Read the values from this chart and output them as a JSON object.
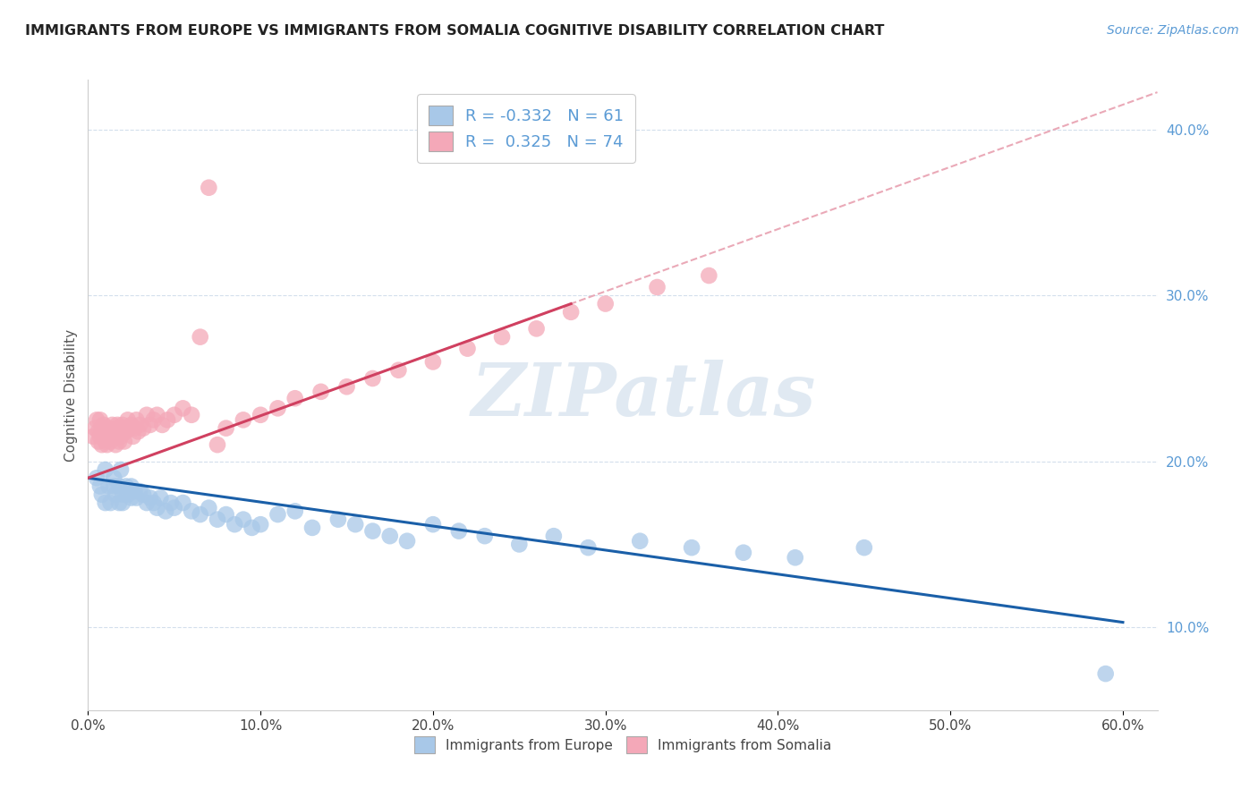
{
  "title": "IMMIGRANTS FROM EUROPE VS IMMIGRANTS FROM SOMALIA COGNITIVE DISABILITY CORRELATION CHART",
  "source_text": "Source: ZipAtlas.com",
  "ylabel": "Cognitive Disability",
  "legend_label1": "Immigrants from Europe",
  "legend_label2": "Immigrants from Somalia",
  "R1": -0.332,
  "N1": 61,
  "R2": 0.325,
  "N2": 74,
  "color_europe": "#a8c8e8",
  "color_somalia": "#f4a8b8",
  "line_color_europe": "#1a5fa8",
  "line_color_somalia": "#d04060",
  "line_color_dashed": "#e8a0b0",
  "xlim": [
    0.0,
    0.62
  ],
  "ylim": [
    0.05,
    0.43
  ],
  "x_ticks": [
    0.0,
    0.1,
    0.2,
    0.3,
    0.4,
    0.5,
    0.6
  ],
  "y_ticks_right": [
    0.1,
    0.2,
    0.3,
    0.4
  ],
  "background_color": "#ffffff",
  "grid_color": "#c8d8e8",
  "watermark": "ZIPatlas",
  "europe_x": [
    0.005,
    0.007,
    0.008,
    0.01,
    0.01,
    0.012,
    0.013,
    0.015,
    0.015,
    0.016,
    0.018,
    0.018,
    0.019,
    0.02,
    0.02,
    0.022,
    0.023,
    0.025,
    0.025,
    0.027,
    0.028,
    0.03,
    0.032,
    0.034,
    0.036,
    0.038,
    0.04,
    0.042,
    0.045,
    0.048,
    0.05,
    0.055,
    0.06,
    0.065,
    0.07,
    0.075,
    0.08,
    0.085,
    0.09,
    0.095,
    0.1,
    0.11,
    0.12,
    0.13,
    0.145,
    0.155,
    0.165,
    0.175,
    0.185,
    0.2,
    0.215,
    0.23,
    0.25,
    0.27,
    0.29,
    0.32,
    0.35,
    0.38,
    0.41,
    0.45,
    0.59
  ],
  "europe_y": [
    0.19,
    0.185,
    0.18,
    0.195,
    0.175,
    0.185,
    0.175,
    0.19,
    0.185,
    0.18,
    0.185,
    0.175,
    0.195,
    0.18,
    0.175,
    0.185,
    0.18,
    0.185,
    0.178,
    0.182,
    0.178,
    0.182,
    0.18,
    0.175,
    0.178,
    0.175,
    0.172,
    0.178,
    0.17,
    0.175,
    0.172,
    0.175,
    0.17,
    0.168,
    0.172,
    0.165,
    0.168,
    0.162,
    0.165,
    0.16,
    0.162,
    0.168,
    0.17,
    0.16,
    0.165,
    0.162,
    0.158,
    0.155,
    0.152,
    0.162,
    0.158,
    0.155,
    0.15,
    0.155,
    0.148,
    0.152,
    0.148,
    0.145,
    0.142,
    0.148,
    0.072
  ],
  "somalia_x": [
    0.003,
    0.004,
    0.005,
    0.006,
    0.006,
    0.007,
    0.007,
    0.008,
    0.008,
    0.009,
    0.009,
    0.01,
    0.01,
    0.01,
    0.011,
    0.011,
    0.012,
    0.012,
    0.013,
    0.013,
    0.014,
    0.014,
    0.015,
    0.015,
    0.016,
    0.016,
    0.017,
    0.017,
    0.018,
    0.018,
    0.019,
    0.019,
    0.02,
    0.02,
    0.021,
    0.022,
    0.023,
    0.024,
    0.025,
    0.026,
    0.027,
    0.028,
    0.029,
    0.03,
    0.032,
    0.034,
    0.036,
    0.038,
    0.04,
    0.043,
    0.046,
    0.05,
    0.055,
    0.06,
    0.065,
    0.07,
    0.075,
    0.08,
    0.09,
    0.1,
    0.11,
    0.12,
    0.135,
    0.15,
    0.165,
    0.18,
    0.2,
    0.22,
    0.24,
    0.26,
    0.28,
    0.3,
    0.33,
    0.36
  ],
  "somalia_y": [
    0.215,
    0.22,
    0.225,
    0.218,
    0.212,
    0.225,
    0.215,
    0.22,
    0.21,
    0.218,
    0.222,
    0.215,
    0.212,
    0.22,
    0.218,
    0.21,
    0.215,
    0.22,
    0.212,
    0.218,
    0.215,
    0.222,
    0.218,
    0.215,
    0.22,
    0.21,
    0.215,
    0.222,
    0.218,
    0.212,
    0.22,
    0.215,
    0.218,
    0.222,
    0.212,
    0.218,
    0.225,
    0.22,
    0.222,
    0.215,
    0.22,
    0.225,
    0.218,
    0.222,
    0.22,
    0.228,
    0.222,
    0.225,
    0.228,
    0.222,
    0.225,
    0.228,
    0.232,
    0.228,
    0.275,
    0.365,
    0.21,
    0.22,
    0.225,
    0.228,
    0.232,
    0.238,
    0.242,
    0.245,
    0.25,
    0.255,
    0.26,
    0.268,
    0.275,
    0.28,
    0.29,
    0.295,
    0.305,
    0.312
  ]
}
